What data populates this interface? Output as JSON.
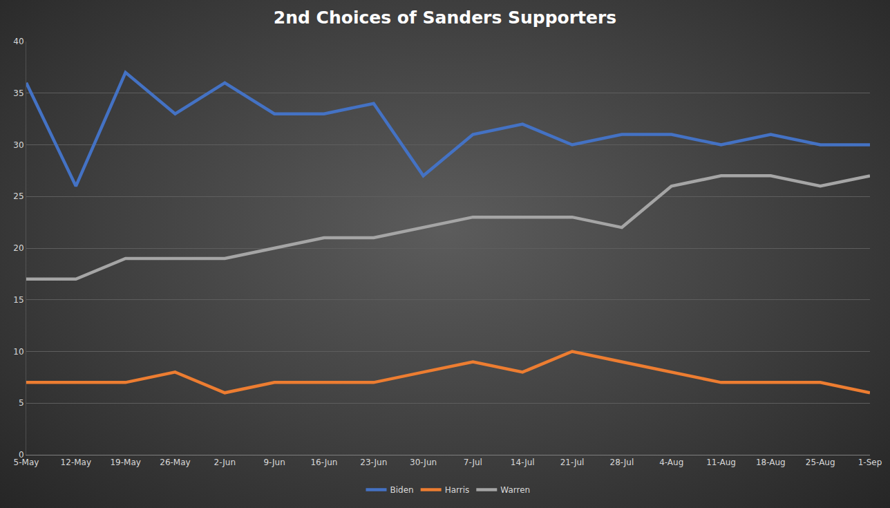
{
  "chart_data": {
    "type": "line",
    "title": "2nd Choices of Sanders Supporters",
    "categories": [
      "5-May",
      "12-May",
      "19-May",
      "26-May",
      "2-Jun",
      "9-Jun",
      "16-Jun",
      "23-Jun",
      "30-Jun",
      "7-Jul",
      "14-Jul",
      "21-Jul",
      "28-Jul",
      "4-Aug",
      "11-Aug",
      "18-Aug",
      "25-Aug",
      "1-Sep"
    ],
    "series": [
      {
        "name": "Biden",
        "color": "#4472c4",
        "values": [
          36,
          26,
          37,
          33,
          36,
          33,
          33,
          34,
          27,
          31,
          32,
          30,
          31,
          31,
          30,
          31,
          30,
          30
        ]
      },
      {
        "name": "Harris",
        "color": "#ed7d31",
        "values": [
          7,
          7,
          7,
          8,
          6,
          7,
          7,
          7,
          8,
          9,
          8,
          10,
          9,
          8,
          7,
          7,
          7,
          6
        ]
      },
      {
        "name": "Warren",
        "color": "#a5a5a5",
        "values": [
          17,
          17,
          19,
          19,
          19,
          20,
          21,
          21,
          22,
          23,
          23,
          23,
          22,
          26,
          27,
          27,
          26,
          27
        ]
      }
    ],
    "ylim": [
      0,
      40
    ],
    "yticks": [
      0,
      5,
      10,
      15,
      20,
      25,
      30,
      35,
      40
    ],
    "grid": true,
    "legend": "bottom"
  }
}
